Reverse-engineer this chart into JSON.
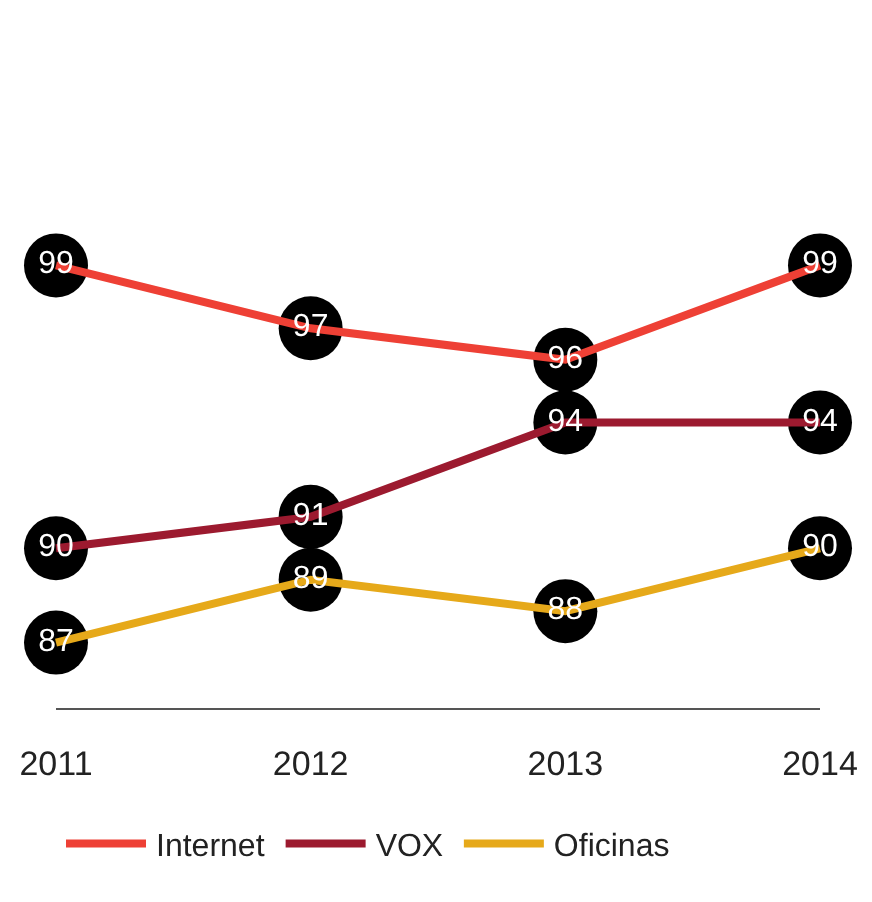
{
  "chart_data": {
    "type": "line",
    "categories": [
      "2011",
      "2012",
      "2013",
      "2014"
    ],
    "series": [
      {
        "name": "Internet",
        "color": "#ee4035",
        "values": [
          99,
          97,
          96,
          99
        ]
      },
      {
        "name": "VOX",
        "color": "#9c1a2f",
        "values": [
          90,
          91,
          94,
          94
        ]
      },
      {
        "name": "Oficinas",
        "color": "#e6a91a",
        "values": [
          87,
          89,
          88,
          90
        ]
      }
    ],
    "data_labels": true,
    "marker": "circle",
    "line_style": "solid",
    "legend": "bottom"
  }
}
